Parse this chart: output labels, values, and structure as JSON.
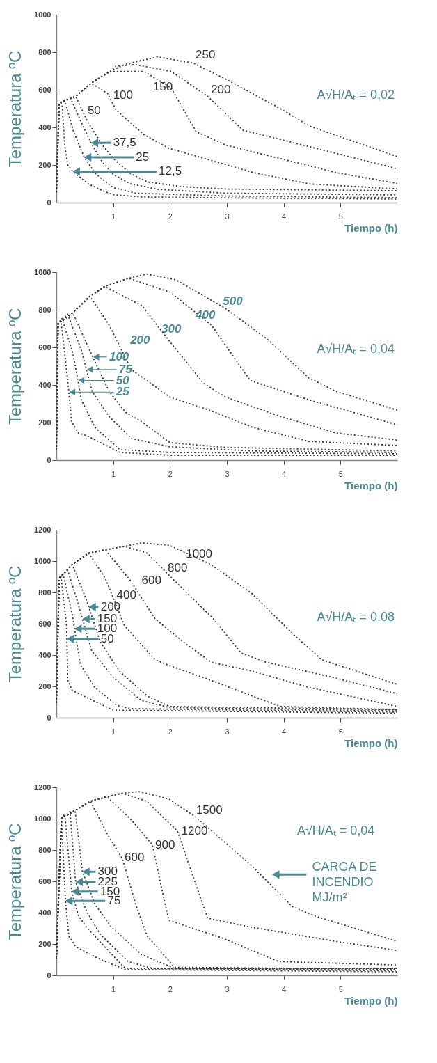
{
  "chart_data": [
    {
      "type": "line",
      "xlabel": "Tiempo (h)",
      "ylabel": "Temperatura ºC",
      "xlim": [
        0,
        6
      ],
      "ylim": [
        0,
        1000
      ],
      "xticks": [
        1,
        2,
        3,
        4,
        5
      ],
      "yticks": [
        0,
        200,
        400,
        600,
        800,
        1000
      ],
      "line_style": "dotted",
      "annotations": [
        "A√H/Aₜ = 0,02",
        {
          "text": "37,5",
          "x": 0.61,
          "y": 318
        },
        {
          "text": "25",
          "x": 0.49,
          "y": 241
        },
        {
          "text": "12,5",
          "x": 0.29,
          "y": 165
        }
      ],
      "series": [
        {
          "color": "#3a3a3a",
          "x": [
            0,
            0.05,
            0.1,
            0.15,
            0.2,
            0.29,
            0.56,
            0.8,
            1.0,
            1.5,
            3,
            6
          ],
          "values": [
            55,
            530,
            525,
            300,
            200,
            165,
            100,
            65,
            42,
            30,
            25,
            19
          ]
        },
        {
          "color": "#3a3a3a",
          "x": [
            0,
            0.05,
            0.15,
            0.3,
            0.49,
            0.7,
            1.0,
            1.4,
            3,
            6
          ],
          "values": [
            55,
            530,
            540,
            380,
            241,
            150,
            80,
            50,
            35,
            26
          ]
        },
        {
          "color": "#3a3a3a",
          "x": [
            0,
            0.05,
            0.25,
            0.45,
            0.61,
            0.8,
            1.0,
            1.3,
            1.8,
            3,
            6
          ],
          "values": [
            55,
            530,
            555,
            420,
            318,
            220,
            150,
            100,
            70,
            50,
            41
          ]
        },
        {
          "name": "50",
          "color": "#3a3a3a",
          "x": [
            0,
            0.05,
            0.34,
            0.55,
            0.8,
            1.0,
            1.3,
            1.6,
            2.2,
            3,
            6
          ],
          "values": [
            55,
            530,
            565,
            430,
            310,
            235,
            155,
            110,
            85,
            72,
            63
          ]
        },
        {
          "name": "100",
          "color": "#3a3a3a",
          "x": [
            0,
            0.05,
            0.34,
            0.61,
            0.9,
            1.05,
            1.54,
            1.98,
            3.49,
            4.46,
            6
          ],
          "values": [
            55,
            530,
            565,
            635,
            581,
            493,
            362,
            289,
            158,
            99,
            73
          ]
        },
        {
          "name": "150",
          "color": "#3a3a3a",
          "x": [
            0,
            0.05,
            0.34,
            0.61,
            0.93,
            1.54,
            2.02,
            2.46,
            3.0,
            3.98,
            4.95,
            6
          ],
          "values": [
            55,
            530,
            565,
            635,
            698,
            698,
            610,
            377,
            304,
            231,
            158,
            102
          ]
        },
        {
          "name": "200",
          "color": "#3a3a3a",
          "x": [
            0,
            0.05,
            0.34,
            0.61,
            0.95,
            1.05,
            1.39,
            2.02,
            2.66,
            3.29,
            3.98,
            6
          ],
          "values": [
            55,
            530,
            565,
            635,
            698,
            727,
            734,
            698,
            566,
            384,
            333,
            180
          ]
        },
        {
          "name": "250",
          "color": "#3a3a3a",
          "x": [
            0,
            0.05,
            0.34,
            0.61,
            0.95,
            1.2,
            1.78,
            2.41,
            3.0,
            3.98,
            4.46,
            6
          ],
          "values": [
            55,
            530,
            565,
            635,
            698,
            735,
            775,
            742,
            654,
            493,
            406,
            245
          ]
        }
      ]
    },
    {
      "type": "line",
      "xlabel": "Tiempo (h)",
      "ylabel": "Temperatura ºC",
      "xlim": [
        0,
        6
      ],
      "ylim": [
        0,
        1000
      ],
      "xticks": [
        1,
        2,
        3,
        4,
        5
      ],
      "yticks": [
        0,
        200,
        400,
        600,
        800,
        1000
      ],
      "line_style": "dotted",
      "annotations": [
        "A√H/Aₜ = 0,04",
        {
          "text": "100",
          "x": 0.64,
          "y": 549
        },
        {
          "text": "75",
          "x": 0.53,
          "y": 482
        },
        {
          "text": "50",
          "x": 0.38,
          "y": 424
        },
        {
          "text": "25",
          "x": 0.22,
          "y": 362
        }
      ],
      "series": [
        {
          "color": "#3a3a3a",
          "x": [
            0,
            0.03,
            0.08,
            0.15,
            0.22,
            0.27,
            0.39,
            0.54,
            1.12,
            2,
            6
          ],
          "values": [
            55,
            725,
            740,
            560,
            362,
            203,
            144,
            129,
            41,
            26,
            26
          ]
        },
        {
          "color": "#3a3a3a",
          "x": [
            0,
            0.03,
            0.1,
            0.29,
            0.38,
            0.44,
            0.68,
            1.12,
            2,
            6
          ],
          "values": [
            55,
            725,
            754,
            570,
            424,
            320,
            174,
            56,
            41,
            34
          ]
        },
        {
          "color": "#3a3a3a",
          "x": [
            0,
            0.03,
            0.2,
            0.44,
            0.53,
            0.63,
            0.93,
            1.32,
            2,
            3.46,
            6
          ],
          "values": [
            55,
            725,
            776,
            585,
            482,
            365,
            232,
            115,
            71,
            49,
            41
          ]
        },
        {
          "color": "#3a3a3a",
          "x": [
            0,
            0.03,
            0.29,
            0.54,
            0.64,
            0.93,
            1.22,
            1.51,
            2,
            2.98,
            6
          ],
          "values": [
            55,
            725,
            784,
            615,
            549,
            365,
            254,
            203,
            93,
            68,
            49
          ]
        },
        {
          "name": "200",
          "color": "#3a3a3a",
          "x": [
            0,
            0.03,
            0.29,
            0.59,
            0.93,
            1.32,
            2,
            2.73,
            3.46,
            4.44,
            6
          ],
          "values": [
            55,
            725,
            784,
            872,
            718,
            482,
            335,
            262,
            174,
            100,
            78
          ]
        },
        {
          "name": "300",
          "color": "#3a3a3a",
          "x": [
            0,
            0.03,
            0.29,
            0.59,
            0.85,
            1.51,
            2,
            2.59,
            2.98,
            3.95,
            4.93,
            6
          ],
          "values": [
            55,
            725,
            784,
            872,
            924,
            821,
            629,
            409,
            335,
            232,
            144,
            107
          ]
        },
        {
          "name": "400",
          "color": "#3a3a3a",
          "x": [
            0,
            0.03,
            0.29,
            0.59,
            0.85,
            1.27,
            2,
            2.73,
            3.41,
            4.44,
            6
          ],
          "values": [
            55,
            725,
            784,
            872,
            924,
            968,
            894,
            718,
            424,
            321,
            188
          ]
        },
        {
          "name": "500",
          "color": "#3a3a3a",
          "x": [
            0,
            0.03,
            0.29,
            0.59,
            0.85,
            1.27,
            1.59,
            2.1,
            2.98,
            3.71,
            4.44,
            4.93,
            6
          ],
          "values": [
            55,
            725,
            784,
            872,
            924,
            968,
            990,
            960,
            806,
            644,
            438,
            365,
            266
          ]
        }
      ]
    },
    {
      "type": "line",
      "xlabel": "Tiempo (h)",
      "ylabel": "Temperatura ºC",
      "xlim": [
        0,
        6
      ],
      "ylim": [
        0,
        1200
      ],
      "xticks": [
        1,
        2,
        3,
        4,
        5
      ],
      "yticks": [
        0,
        200,
        400,
        600,
        800,
        1000,
        1200
      ],
      "line_style": "dotted",
      "annotations": [
        "A√H/Aₜ = 0,08",
        {
          "text": "200",
          "x": 0.57,
          "y": 707
        },
        {
          "text": "150",
          "x": 0.46,
          "y": 630
        },
        {
          "text": "100",
          "x": 0.32,
          "y": 568
        },
        {
          "text": "50",
          "x": 0.185,
          "y": 503
        }
      ],
      "series": [
        {
          "color": "#3a3a3a",
          "x": [
            0,
            0.05,
            0.08,
            0.18,
            0.185,
            0.2,
            0.28,
            0.57,
            1.0,
            6
          ],
          "values": [
            94,
            891,
            909,
            587,
            503,
            239,
            174,
            123,
            48,
            29
          ]
        },
        {
          "color": "#3a3a3a",
          "x": [
            0,
            0.05,
            0.12,
            0.28,
            0.32,
            0.42,
            0.67,
            1.06,
            1.3,
            6
          ],
          "values": [
            94,
            891,
            913,
            659,
            568,
            341,
            196,
            80,
            58,
            36
          ]
        },
        {
          "color": "#3a3a3a",
          "x": [
            0,
            0.05,
            0.2,
            0.38,
            0.46,
            0.62,
            1.01,
            1.5,
            1.99,
            6
          ],
          "values": [
            94,
            891,
            942,
            732,
            630,
            428,
            254,
            109,
            65,
            43
          ]
        },
        {
          "color": "#3a3a3a",
          "x": [
            0,
            0.05,
            0.28,
            0.52,
            0.57,
            0.77,
            1.11,
            1.6,
            1.99,
            6
          ],
          "values": [
            94,
            891,
            978,
            761,
            707,
            486,
            297,
            138,
            72,
            51
          ]
        },
        {
          "name": "400",
          "color": "#3a3a3a",
          "x": [
            0,
            0.05,
            0.28,
            0.57,
            0.86,
            1.2,
            1.74,
            1.99,
            2.72,
            3.45,
            3.94,
            6
          ],
          "values": [
            94,
            891,
            978,
            1051,
            891,
            587,
            370,
            333,
            239,
            138,
            72,
            51
          ]
        },
        {
          "name": "600",
          "color": "#3a3a3a",
          "x": [
            0,
            0.05,
            0.28,
            0.57,
            0.86,
            1.3,
            1.74,
            2.28,
            2.72,
            3.45,
            4.42,
            6
          ],
          "values": [
            94,
            891,
            978,
            1051,
            1072,
            877,
            630,
            471,
            355,
            297,
            196,
            72
          ]
        },
        {
          "name": "800",
          "color": "#3a3a3a",
          "x": [
            0,
            0.05,
            0.28,
            0.57,
            0.86,
            1.2,
            1.6,
            1.99,
            2.77,
            3.25,
            3.69,
            4.91,
            6
          ],
          "values": [
            94,
            891,
            978,
            1051,
            1072,
            1094,
            1051,
            906,
            630,
            413,
            355,
            254,
            152
          ]
        },
        {
          "name": "1000",
          "color": "#3a3a3a",
          "x": [
            0,
            0.05,
            0.28,
            0.57,
            0.86,
            1.2,
            1.5,
            1.99,
            2.72,
            3.45,
            4.18,
            4.67,
            5.4,
            6
          ],
          "values": [
            94,
            891,
            978,
            1051,
            1072,
            1094,
            1116,
            1101,
            978,
            790,
            529,
            370,
            283,
            213
          ]
        }
      ]
    },
    {
      "type": "line",
      "xlabel": "Tiempo (h)",
      "ylabel": "Temperatura ºC",
      "xlim": [
        0,
        6
      ],
      "ylim": [
        0,
        1200
      ],
      "xticks": [
        1,
        2,
        3,
        4,
        5
      ],
      "yticks": [
        0,
        200,
        400,
        600,
        800,
        1000,
        1200
      ],
      "line_style": "dotted",
      "annotations": [
        "A√H/Aₜ = 0,04",
        "CARGA DE INCENDIO MJ/m²",
        {
          "text": "300",
          "x": 0.46,
          "y": 661
        },
        {
          "text": "225",
          "x": 0.34,
          "y": 596
        },
        {
          "text": "150",
          "x": 0.27,
          "y": 534
        },
        {
          "text": "75",
          "x": 0.16,
          "y": 475
        }
      ],
      "series": [
        {
          "color": "#3a3a3a",
          "x": [
            0,
            0.09,
            0.13,
            0.16,
            0.22,
            0.34,
            0.77,
            1.21,
            6
          ],
          "values": [
            110,
            1001,
            700,
            475,
            250,
            183,
            102,
            37,
            22
          ]
        },
        {
          "color": "#3a3a3a",
          "x": [
            0,
            0.09,
            0.15,
            0.27,
            0.39,
            0.53,
            0.87,
            1.21,
            6
          ],
          "values": [
            110,
            1001,
            1030,
            534,
            380,
            307,
            175,
            44,
            29
          ]
        },
        {
          "color": "#3a3a3a",
          "x": [
            0,
            0.09,
            0.24,
            0.34,
            0.53,
            0.77,
            1.26,
            1.69,
            6
          ],
          "values": [
            110,
            1001,
            1045,
            596,
            409,
            263,
            88,
            44,
            37
          ]
        },
        {
          "color": "#3a3a3a",
          "x": [
            0,
            0.09,
            0.33,
            0.46,
            0.68,
            0.97,
            1.5,
            2.08,
            6
          ],
          "values": [
            110,
            1001,
            1053,
            661,
            453,
            307,
            132,
            44,
            44
          ]
        },
        {
          "name": "600",
          "color": "#3a3a3a",
          "x": [
            0,
            0.09,
            0.33,
            0.6,
            0.9,
            1.16,
            1.4,
            1.6,
            2.08,
            6
          ],
          "values": [
            110,
            1001,
            1053,
            1111,
            900,
            746,
            450,
            250,
            51,
            40
          ]
        },
        {
          "name": "900",
          "color": "#3a3a3a",
          "x": [
            0,
            0.09,
            0.33,
            0.6,
            0.89,
            1.3,
            1.69,
            1.85,
            1.98,
            2.95,
            3.91,
            6
          ],
          "values": [
            110,
            1001,
            1053,
            1111,
            1140,
            1000,
            833,
            560,
            351,
            234,
            88,
            66
          ]
        },
        {
          "name": "1200",
          "color": "#3a3a3a",
          "x": [
            0,
            0.09,
            0.33,
            0.6,
            0.89,
            1.16,
            1.59,
            2.13,
            2.66,
            3.43,
            4.88,
            6
          ],
          "values": [
            110,
            1001,
            1053,
            1111,
            1140,
            1162,
            1111,
            921,
            365,
            307,
            219,
            158
          ]
        },
        {
          "name": "1500",
          "color": "#3a3a3a",
          "x": [
            0,
            0.09,
            0.33,
            0.6,
            0.89,
            1.16,
            1.45,
            1.98,
            2.46,
            3.43,
            4.15,
            4.54,
            6
          ],
          "values": [
            110,
            1001,
            1053,
            1111,
            1140,
            1162,
            1173,
            1126,
            1009,
            702,
            439,
            380,
            216
          ]
        }
      ]
    }
  ]
}
